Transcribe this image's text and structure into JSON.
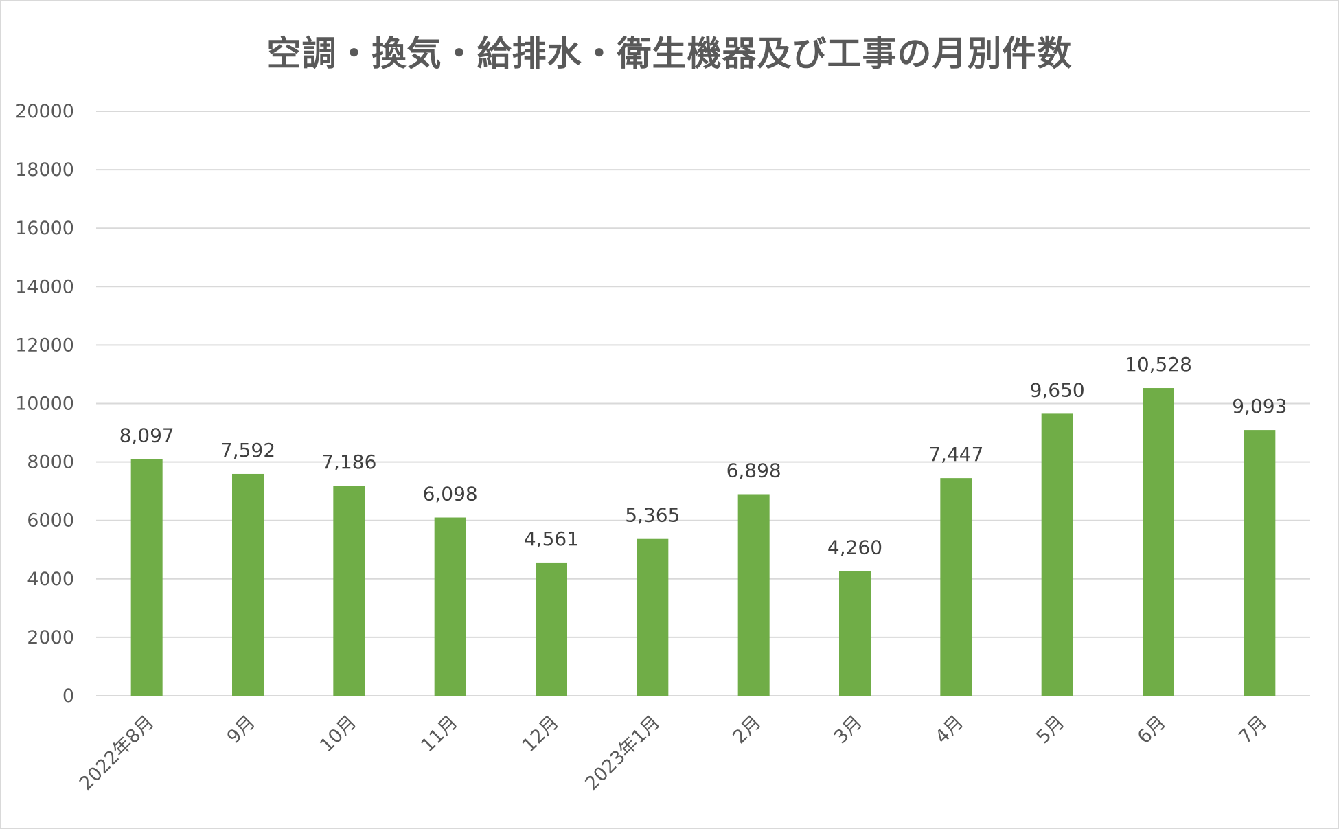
{
  "chart_data": {
    "type": "bar",
    "title": "空調・換気・給排水・衛生機器及び工事の月別件数",
    "xlabel": "",
    "ylabel": "",
    "categories": [
      "2022年8月",
      "9月",
      "10月",
      "11月",
      "12月",
      "2023年1月",
      "2月",
      "3月",
      "4月",
      "5月",
      "6月",
      "7月"
    ],
    "values": [
      8097,
      7592,
      7186,
      6098,
      4561,
      5365,
      6898,
      4260,
      7447,
      9650,
      10528,
      9093
    ],
    "data_labels": [
      "8,097",
      "7,592",
      "7,186",
      "6,098",
      "4,561",
      "5,365",
      "6,898",
      "4,260",
      "7,447",
      "9,650",
      "10,528",
      "9,093"
    ],
    "ylim": [
      0,
      20000
    ],
    "yticks": [
      0,
      2000,
      4000,
      6000,
      8000,
      10000,
      12000,
      14000,
      16000,
      18000,
      20000
    ],
    "grid": true,
    "legend": "none",
    "colors": {
      "bar": "#70ad47",
      "grid": "#d9d9d9",
      "text": "#595959"
    }
  }
}
